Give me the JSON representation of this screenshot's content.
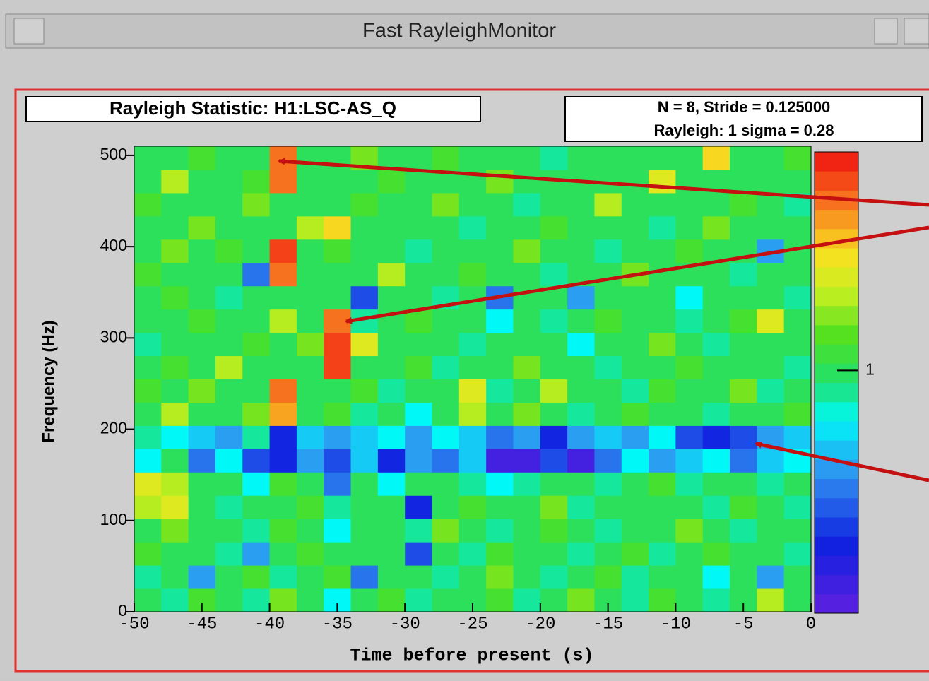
{
  "window": {
    "title": "Fast RayleighMonitor"
  },
  "chart_data": {
    "type": "heatmap",
    "title": "Rayleigh Statistic:  H1:LSC-AS_Q",
    "info": [
      "N = 8,  Stride = 0.125000",
      "Rayleigh: 1 sigma = 0.28"
    ],
    "xlabel": "Time before present  (s)",
    "ylabel": "Frequency (Hz)",
    "xlim": [
      -50,
      0
    ],
    "ylim": [
      0,
      510
    ],
    "xticks": [
      -50,
      -45,
      -40,
      -35,
      -30,
      -25,
      -20,
      -15,
      -10,
      -5,
      0
    ],
    "yticks": [
      0,
      100,
      200,
      300,
      400,
      500
    ],
    "zlim": [
      0,
      1.9
    ],
    "zticks": [
      1
    ],
    "z": [
      [
        1.0,
        0.9,
        1.1,
        1.0,
        0.9,
        1.2,
        1.0,
        0.8,
        1.0,
        1.1,
        0.9,
        1.0,
        1.0,
        1.1,
        0.9,
        1.0,
        1.2,
        1.0,
        0.9,
        1.1,
        1.0,
        0.9,
        1.0,
        1.3,
        1.0
      ],
      [
        0.9,
        1.0,
        0.6,
        1.0,
        1.1,
        0.9,
        1.0,
        1.1,
        0.5,
        1.0,
        1.0,
        0.9,
        1.0,
        1.2,
        1.0,
        0.9,
        1.0,
        1.1,
        0.9,
        1.0,
        1.0,
        0.8,
        1.0,
        0.6,
        1.0
      ],
      [
        1.1,
        1.0,
        1.0,
        0.9,
        0.6,
        1.0,
        1.1,
        1.0,
        1.0,
        1.0,
        0.4,
        1.0,
        0.9,
        1.1,
        1.0,
        1.0,
        0.9,
        1.0,
        1.1,
        0.9,
        1.0,
        1.1,
        1.0,
        1.0,
        0.9
      ],
      [
        1.0,
        1.2,
        1.0,
        1.0,
        0.9,
        1.1,
        1.0,
        0.8,
        1.0,
        1.0,
        0.9,
        1.2,
        1.0,
        0.9,
        1.0,
        1.1,
        1.0,
        0.9,
        1.0,
        1.0,
        1.2,
        1.0,
        0.9,
        1.0,
        1.0
      ],
      [
        1.3,
        1.4,
        1.0,
        0.9,
        1.0,
        1.0,
        1.1,
        0.9,
        1.0,
        1.0,
        0.3,
        1.0,
        1.1,
        1.0,
        1.0,
        1.2,
        0.9,
        1.0,
        1.0,
        1.0,
        1.0,
        0.9,
        1.1,
        1.0,
        0.9
      ],
      [
        1.4,
        1.3,
        1.0,
        1.0,
        0.8,
        1.1,
        1.0,
        0.5,
        1.0,
        0.8,
        1.0,
        1.0,
        0.9,
        0.8,
        0.9,
        1.0,
        1.0,
        0.9,
        1.0,
        1.1,
        0.9,
        1.0,
        1.0,
        0.9,
        1.0
      ],
      [
        0.8,
        1.0,
        0.5,
        0.8,
        0.4,
        0.3,
        0.6,
        0.4,
        0.7,
        0.3,
        0.6,
        0.5,
        0.7,
        0.1,
        0.1,
        0.4,
        0.1,
        0.5,
        0.8,
        0.6,
        0.7,
        0.8,
        0.5,
        0.7,
        0.8
      ],
      [
        0.9,
        0.8,
        0.7,
        0.6,
        0.9,
        0.3,
        0.7,
        0.6,
        0.7,
        0.8,
        0.6,
        0.8,
        0.7,
        0.5,
        0.6,
        0.3,
        0.6,
        0.7,
        0.6,
        0.8,
        0.4,
        0.3,
        0.4,
        0.6,
        0.7
      ],
      [
        1.0,
        1.3,
        1.0,
        1.0,
        1.2,
        1.6,
        1.0,
        1.1,
        0.9,
        1.0,
        0.8,
        1.0,
        1.3,
        1.0,
        1.2,
        1.0,
        0.9,
        1.0,
        1.1,
        1.0,
        1.0,
        0.9,
        1.0,
        1.0,
        1.1
      ],
      [
        1.1,
        1.0,
        1.2,
        1.0,
        1.0,
        1.7,
        1.0,
        1.0,
        1.1,
        0.9,
        1.0,
        1.0,
        1.4,
        0.9,
        1.0,
        1.3,
        1.0,
        1.0,
        0.9,
        1.1,
        1.0,
        1.0,
        1.2,
        0.9,
        1.0
      ],
      [
        1.0,
        1.1,
        1.0,
        1.3,
        1.0,
        1.0,
        1.0,
        1.8,
        1.0,
        1.0,
        1.1,
        0.9,
        1.0,
        1.0,
        1.2,
        1.0,
        1.0,
        0.9,
        1.0,
        1.0,
        1.1,
        1.0,
        1.0,
        1.0,
        0.9
      ],
      [
        0.9,
        1.0,
        1.0,
        1.0,
        1.1,
        1.0,
        1.2,
        1.8,
        1.4,
        1.0,
        1.0,
        1.0,
        0.9,
        1.0,
        1.0,
        1.0,
        0.8,
        1.0,
        1.0,
        1.2,
        1.0,
        0.9,
        1.0,
        1.0,
        1.0
      ],
      [
        1.0,
        1.0,
        1.1,
        1.0,
        1.0,
        1.3,
        1.0,
        1.7,
        0.9,
        1.0,
        1.1,
        1.0,
        1.0,
        0.8,
        1.0,
        0.9,
        1.0,
        1.1,
        1.0,
        1.0,
        0.9,
        1.0,
        1.1,
        1.4,
        1.0
      ],
      [
        1.0,
        1.1,
        1.0,
        0.9,
        1.0,
        1.0,
        1.0,
        1.0,
        0.4,
        1.0,
        1.0,
        0.9,
        1.0,
        0.5,
        1.0,
        1.0,
        0.6,
        1.0,
        1.0,
        1.0,
        0.8,
        1.0,
        1.0,
        1.0,
        0.9
      ],
      [
        1.1,
        1.0,
        1.0,
        1.0,
        0.5,
        1.7,
        1.0,
        1.0,
        1.0,
        1.3,
        1.0,
        1.0,
        1.1,
        1.0,
        1.0,
        0.9,
        1.0,
        1.0,
        1.2,
        1.0,
        1.0,
        1.0,
        0.9,
        1.0,
        1.0
      ],
      [
        1.0,
        1.2,
        1.0,
        1.1,
        1.0,
        1.8,
        1.0,
        1.1,
        1.0,
        1.0,
        0.9,
        1.0,
        1.0,
        1.0,
        1.2,
        1.0,
        1.0,
        0.9,
        1.0,
        1.0,
        1.1,
        1.0,
        1.0,
        0.6,
        1.0
      ],
      [
        1.0,
        1.0,
        1.2,
        1.0,
        1.0,
        1.0,
        1.3,
        1.5,
        1.0,
        1.0,
        1.0,
        1.0,
        0.9,
        1.0,
        1.0,
        1.1,
        1.0,
        1.0,
        1.0,
        0.9,
        1.0,
        1.2,
        1.0,
        1.0,
        1.0
      ],
      [
        1.1,
        1.0,
        1.0,
        1.0,
        1.2,
        1.0,
        1.0,
        1.0,
        1.1,
        1.0,
        1.0,
        1.2,
        1.0,
        1.0,
        0.9,
        1.0,
        1.0,
        1.3,
        1.0,
        1.0,
        1.0,
        1.0,
        1.1,
        1.0,
        0.9
      ],
      [
        1.0,
        1.3,
        1.0,
        1.0,
        1.1,
        1.7,
        1.0,
        1.0,
        1.0,
        1.1,
        1.0,
        1.0,
        1.0,
        1.2,
        1.0,
        1.0,
        1.0,
        1.0,
        1.0,
        1.4,
        1.0,
        1.0,
        1.0,
        1.0,
        1.0
      ],
      [
        1.0,
        1.0,
        1.1,
        1.0,
        1.0,
        1.7,
        1.0,
        1.0,
        1.2,
        1.0,
        1.0,
        1.1,
        1.0,
        1.0,
        1.0,
        0.9,
        1.0,
        1.0,
        1.0,
        1.0,
        1.0,
        1.5,
        1.0,
        1.0,
        1.1
      ]
    ]
  }
}
